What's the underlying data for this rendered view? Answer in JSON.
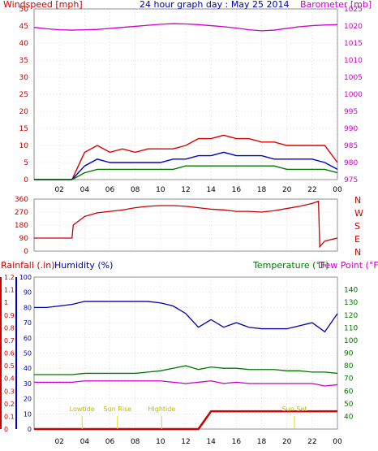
{
  "header": {
    "left_label": "Windspeed [mph]",
    "title": "24 hour graph day : May 25 2014",
    "right_label": "Barometer [mb]"
  },
  "colors": {
    "wind": "#dd0000",
    "gust": "#0000cc",
    "avg": "#007700",
    "baro": "#cc00cc",
    "dir": "#cc0000",
    "rain": "#cc0000",
    "humidity": "#0000aa",
    "temp": "#007700",
    "dew": "#cc00cc",
    "sunmark": "#dddd00",
    "grid": "#bbbbbb"
  },
  "x_ticks": [
    "02",
    "04",
    "06",
    "08",
    "10",
    "12",
    "14",
    "16",
    "18",
    "20",
    "22",
    "00"
  ],
  "chart_data": [
    {
      "type": "line",
      "panel": "wind-barometer",
      "x": [
        0,
        1,
        2,
        3,
        4,
        5,
        6,
        7,
        8,
        9,
        10,
        11,
        12,
        13,
        14,
        15,
        16,
        17,
        18,
        19,
        20,
        21,
        22,
        23,
        24
      ],
      "series": [
        {
          "axis": "left",
          "values": [
            0,
            0,
            0,
            0,
            8,
            10,
            8,
            9,
            8,
            9,
            9,
            9,
            10,
            12,
            12,
            13,
            12,
            12,
            11,
            11,
            10,
            10,
            10,
            10,
            5
          ]
        },
        {
          "axis": "left",
          "values": [
            0,
            0,
            0,
            0,
            4,
            6,
            5,
            5,
            5,
            5,
            5,
            6,
            6,
            7,
            7,
            8,
            7,
            7,
            7,
            6,
            6,
            6,
            6,
            5,
            3
          ]
        },
        {
          "axis": "left",
          "values": [
            0,
            0,
            0,
            0,
            2,
            3,
            3,
            3,
            3,
            3,
            3,
            3,
            4,
            4,
            4,
            4,
            4,
            4,
            4,
            4,
            3,
            3,
            3,
            3,
            2
          ]
        },
        {
          "axis": "right",
          "values": [
            1019.6,
            1019.2,
            1018.9,
            1018.8,
            1018.9,
            1019.0,
            1019.3,
            1019.6,
            1019.9,
            1020.2,
            1020.5,
            1020.7,
            1020.6,
            1020.4,
            1020.1,
            1019.8,
            1019.4,
            1018.9,
            1018.6,
            1018.8,
            1019.3,
            1019.8,
            1020.1,
            1020.3,
            1020.4
          ]
        }
      ],
      "ylim": [
        0,
        50
      ],
      "y_ticks": [
        0,
        5,
        10,
        15,
        20,
        25,
        30,
        35,
        40,
        45,
        50
      ],
      "y2lim": [
        975,
        1025
      ],
      "y2_ticks": [
        975,
        980,
        985,
        990,
        995,
        1000,
        1005,
        1010,
        1015,
        1020,
        1025
      ]
    },
    {
      "type": "line",
      "panel": "wind-direction",
      "x": [
        0,
        1,
        2,
        3,
        3.1,
        4,
        5,
        6,
        7,
        8,
        9,
        10,
        11,
        12,
        13,
        14,
        15,
        16,
        17,
        18,
        19,
        20,
        21,
        22,
        22.5,
        22.6,
        23,
        24
      ],
      "series": [
        {
          "values": [
            90,
            90,
            90,
            90,
            180,
            240,
            265,
            275,
            285,
            300,
            310,
            315,
            315,
            310,
            300,
            290,
            285,
            275,
            275,
            270,
            280,
            295,
            310,
            330,
            345,
            30,
            70,
            90
          ]
        }
      ],
      "ylim": [
        0,
        360
      ],
      "y_ticks": [
        0,
        90,
        180,
        270,
        360
      ],
      "right_labels": [
        "N",
        "W",
        "S",
        "E",
        "N"
      ]
    },
    {
      "type": "line",
      "panel": "rain-humidity-temperature",
      "title_labels": {
        "rain": "Rainfall (.in)",
        "humidity": "Humidity (%)",
        "temp": "Temperature (°F)",
        "dew": "Dew Point (°F)"
      },
      "x": [
        0,
        1,
        2,
        3,
        4,
        5,
        6,
        7,
        8,
        9,
        10,
        11,
        12,
        13,
        14,
        15,
        16,
        17,
        18,
        19,
        20,
        21,
        22,
        23,
        24
      ],
      "series": [
        {
          "axis": "humidity",
          "values": [
            80,
            80,
            81,
            82,
            84,
            84,
            84,
            84,
            84,
            84,
            83,
            81,
            76,
            67,
            72,
            67,
            70,
            67,
            66,
            66,
            66,
            68,
            70,
            64,
            76
          ]
        },
        {
          "axis": "temp",
          "values": [
            73,
            73,
            73,
            73,
            74,
            74,
            74,
            74,
            74,
            75,
            76,
            78,
            80,
            77,
            79,
            78,
            78,
            77,
            77,
            77,
            76,
            76,
            75,
            75,
            74
          ]
        },
        {
          "axis": "temp",
          "values": [
            67,
            67,
            67,
            67,
            68,
            68,
            68,
            68,
            68,
            68,
            68,
            67,
            66,
            67,
            68,
            66,
            67,
            66,
            66,
            66,
            66,
            66,
            66,
            64,
            65
          ]
        },
        {
          "axis": "rain",
          "values": [
            0,
            0,
            0,
            0,
            0,
            0,
            0,
            0,
            0,
            0,
            0,
            0,
            0,
            0,
            0.14,
            0.14,
            0.14,
            0.14,
            0.14,
            0.14,
            0.14,
            0.14,
            0.14,
            0.14,
            0.14
          ]
        }
      ],
      "humidity_lim": [
        0,
        100
      ],
      "humidity_ticks": [
        0,
        10,
        20,
        30,
        40,
        50,
        60,
        70,
        80,
        90,
        100
      ],
      "rain_lim": [
        0,
        1.2
      ],
      "rain_ticks": [
        0,
        0.1,
        0.2,
        0.3,
        0.4,
        0.5,
        0.6,
        0.7,
        0.8,
        0.9,
        1,
        1.1,
        1.2
      ],
      "temp_lim": [
        30,
        150
      ],
      "temp_ticks": [
        40,
        50,
        60,
        70,
        80,
        90,
        100,
        110,
        120,
        130,
        140
      ],
      "annotations": [
        {
          "label": "Lowtide",
          "x": 3.8
        },
        {
          "label": "Sun Rise",
          "x": 6.6
        },
        {
          "label": "Hightide",
          "x": 10.1
        },
        {
          "label": "Sun Set",
          "x": 20.6
        }
      ]
    }
  ]
}
